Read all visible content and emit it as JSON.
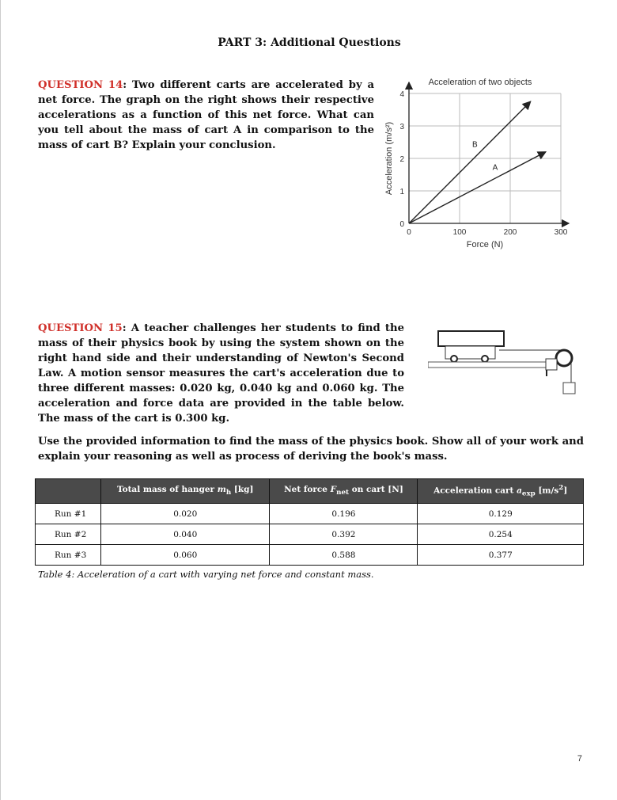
{
  "header": {
    "title": "PART 3: Additional Questions"
  },
  "q14": {
    "label": "QUESTION 14",
    "text": ": Two different carts are accelerated by a net force. The graph on the right shows their respective accelerations as a function of this net force. What can you tell about the mass of cart A in comparison to the mass of cart B? Explain your conclusion."
  },
  "q15": {
    "label": "QUESTION 15",
    "text": ": A teacher challenges her students to find the mass of their physics book by using the system shown on the right hand side and their understanding of Newton's Second Law. A motion sensor measures the cart's acceleration due to three different masses: 0.020 kg, 0.040 kg and 0.060 kg. The acceleration and force data are provided in the table below. The mass of the cart is 0.300 kg."
  },
  "instructions": "Use the provided information to find the mass of the physics book. Show all of your work and explain your reasoning as well as process of deriving the book's mass.",
  "chart_data": {
    "type": "line",
    "title": "Acceleration of two objects",
    "xlabel": "Force (N)",
    "ylabel": "Acceleration (m/s²)",
    "xlim": [
      0,
      300
    ],
    "ylim": [
      0,
      4
    ],
    "xticks": [
      "0",
      "100",
      "200",
      "300"
    ],
    "yticks": [
      "0",
      "1",
      "2",
      "3",
      "4"
    ],
    "grid": true,
    "series": [
      {
        "name": "B",
        "x": [
          0,
          240
        ],
        "y": [
          0,
          3.75
        ]
      },
      {
        "name": "A",
        "x": [
          0,
          270
        ],
        "y": [
          0,
          2.2
        ]
      }
    ]
  },
  "table": {
    "headers": [
      "",
      "Total mass of hanger m_h [kg]",
      "Net force F_net on cart [N]",
      "Acceleration cart a_exp [m/s²]"
    ],
    "rows": [
      [
        "Run #1",
        "0.020",
        "0.196",
        "0.129"
      ],
      [
        "Run #2",
        "0.040",
        "0.392",
        "0.254"
      ],
      [
        "Run #3",
        "0.060",
        "0.588",
        "0.377"
      ]
    ],
    "caption": "Table 4: Acceleration of a cart with varying net force and constant mass."
  },
  "page_number": "7"
}
